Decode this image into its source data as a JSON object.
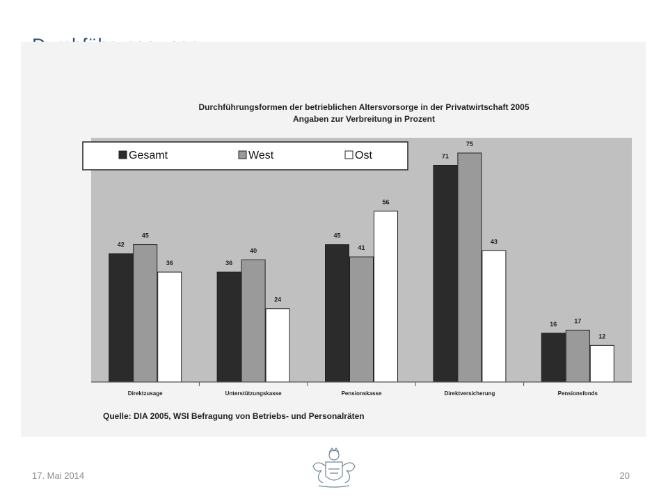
{
  "slide": {
    "title": "Durchführungswege",
    "date": "17. Mai 2014",
    "page_number": "20"
  },
  "chart_data": {
    "type": "bar",
    "title": "Durchführungsformen der betrieblichen Altersvorsorge in der Privatwirtschaft 2005",
    "subtitle": "Angaben zur Verbreitung in Prozent",
    "categories": [
      "Direktzusage",
      "Unterstützungskasse",
      "Pensionskasse",
      "Direktversicherung",
      "Pensionsfonds"
    ],
    "series": [
      {
        "name": "Gesamt",
        "values": [
          42,
          36,
          45,
          71,
          16
        ],
        "color": "#2b2b2b"
      },
      {
        "name": "West",
        "values": [
          45,
          40,
          41,
          75,
          17
        ],
        "color": "#9a9a9a"
      },
      {
        "name": "Ost",
        "values": [
          36,
          24,
          56,
          43,
          12
        ],
        "color": "#ffffff"
      }
    ],
    "ylim": [
      0,
      80
    ],
    "grid": false,
    "legend_position": "top-left",
    "plot_background": "#c0c0c0",
    "source": "Quelle: DIA 2005, WSI Befragung von Betriebs- und Personalräten"
  }
}
